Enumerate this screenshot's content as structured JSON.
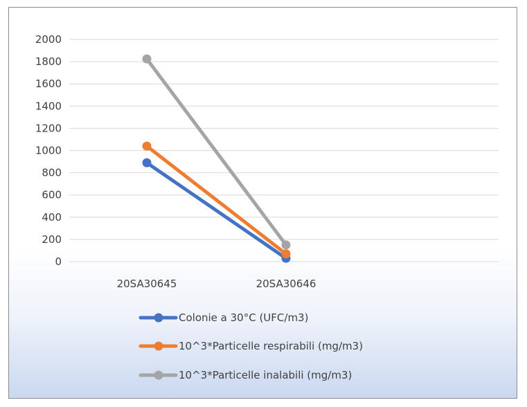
{
  "chart_data": {
    "type": "line",
    "title": "",
    "xlabel": "",
    "ylabel": "",
    "categories": [
      "20SA30645",
      "20SA30646"
    ],
    "ylim": [
      0,
      2000
    ],
    "yticks": [
      0,
      200,
      400,
      600,
      800,
      1000,
      1200,
      1400,
      1600,
      1800,
      2000
    ],
    "grid": true,
    "legend_position": "bottom",
    "series": [
      {
        "name": "Colonie a 30°C (UFC/m3)",
        "values": [
          890,
          30
        ],
        "color": "#4472c4"
      },
      {
        "name": "10^3*Particelle respirabili (mg/m3)",
        "values": [
          1040,
          70
        ],
        "color": "#ed7d31"
      },
      {
        "name": "10^3*Particelle inalabili (mg/m3)",
        "values": [
          1825,
          150
        ],
        "color": "#a5a5a5"
      }
    ]
  }
}
